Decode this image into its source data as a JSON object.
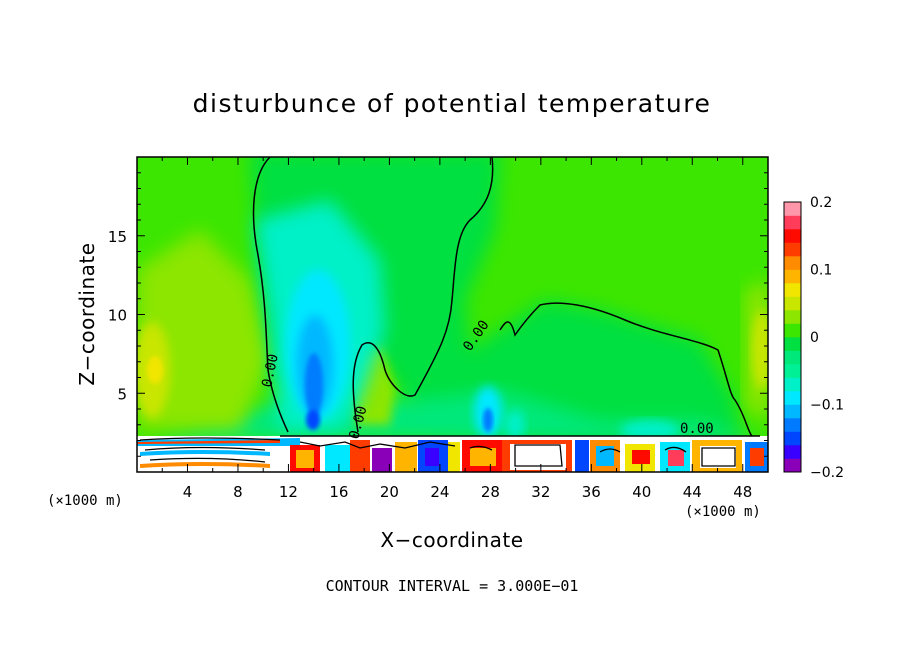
{
  "chart_data": {
    "type": "heatmap",
    "title": "disturbunce of potential temperature",
    "xlabel": "X−coordinate",
    "ylabel": "Z−coordinate",
    "x_unit_note": "(×1000 m)",
    "x_unit_note_right": "(×1000 m)",
    "xlim": [
      0,
      50
    ],
    "ylim": [
      0,
      20
    ],
    "x_ticks": [
      "4",
      "8",
      "12",
      "16",
      "20",
      "24",
      "28",
      "32",
      "36",
      "40",
      "44",
      "48"
    ],
    "y_ticks": [
      "5",
      "10",
      "15"
    ],
    "colorbar": {
      "range": [
        -0.2,
        0.2
      ],
      "tick_labels": [
        "0.2",
        "0.1",
        "0",
        "−0.1",
        "−0.2"
      ],
      "colors": [
        "#8a00b8",
        "#3a00ff",
        "#0046ff",
        "#007bff",
        "#00b8ff",
        "#00e8ff",
        "#00f0c8",
        "#00f096",
        "#00e87a",
        "#00e040",
        "#3ce600",
        "#8ce600",
        "#c8e600",
        "#f0e600",
        "#ffb400",
        "#ff8c00",
        "#ff3c00",
        "#ff0a00",
        "#ff3c5a",
        "#ff96aa"
      ]
    },
    "contour_label": "0.00",
    "annotation": "CONTOUR INTERVAL = 3.000E−01"
  }
}
